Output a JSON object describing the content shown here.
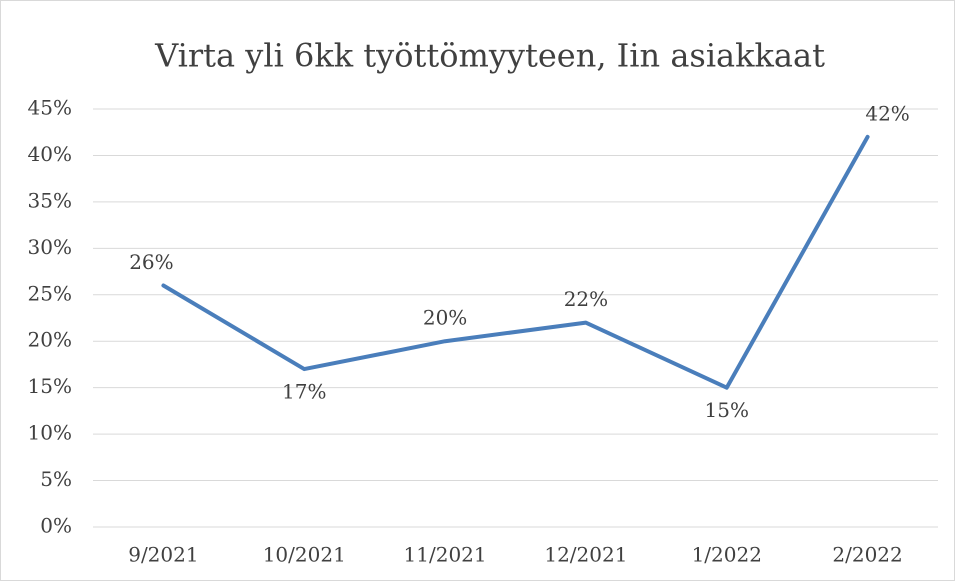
{
  "chart_data": {
    "type": "line",
    "title": "Virta yli 6kk työttömyyteen, Iin asiakkaat",
    "categories": [
      "9/2021",
      "10/2021",
      "11/2021",
      "12/2021",
      "1/2022",
      "2/2022"
    ],
    "series": [
      {
        "color": "#4a7ebb",
        "values": [
          26,
          17,
          20,
          22,
          15,
          42
        ],
        "value_labels": [
          "26%",
          "17%",
          "20%",
          "22%",
          "15%",
          "42%"
        ]
      }
    ],
    "ylim": [
      0,
      45
    ],
    "yticks": [
      {
        "value": 0,
        "label": "0%"
      },
      {
        "value": 5,
        "label": "5%"
      },
      {
        "value": 10,
        "label": "10%"
      },
      {
        "value": 15,
        "label": "15%"
      },
      {
        "value": 20,
        "label": "20%"
      },
      {
        "value": 25,
        "label": "25%"
      },
      {
        "value": 30,
        "label": "30%"
      },
      {
        "value": 35,
        "label": "35%"
      },
      {
        "value": 40,
        "label": "40%"
      },
      {
        "value": 45,
        "label": "45%"
      }
    ],
    "grid": true
  }
}
